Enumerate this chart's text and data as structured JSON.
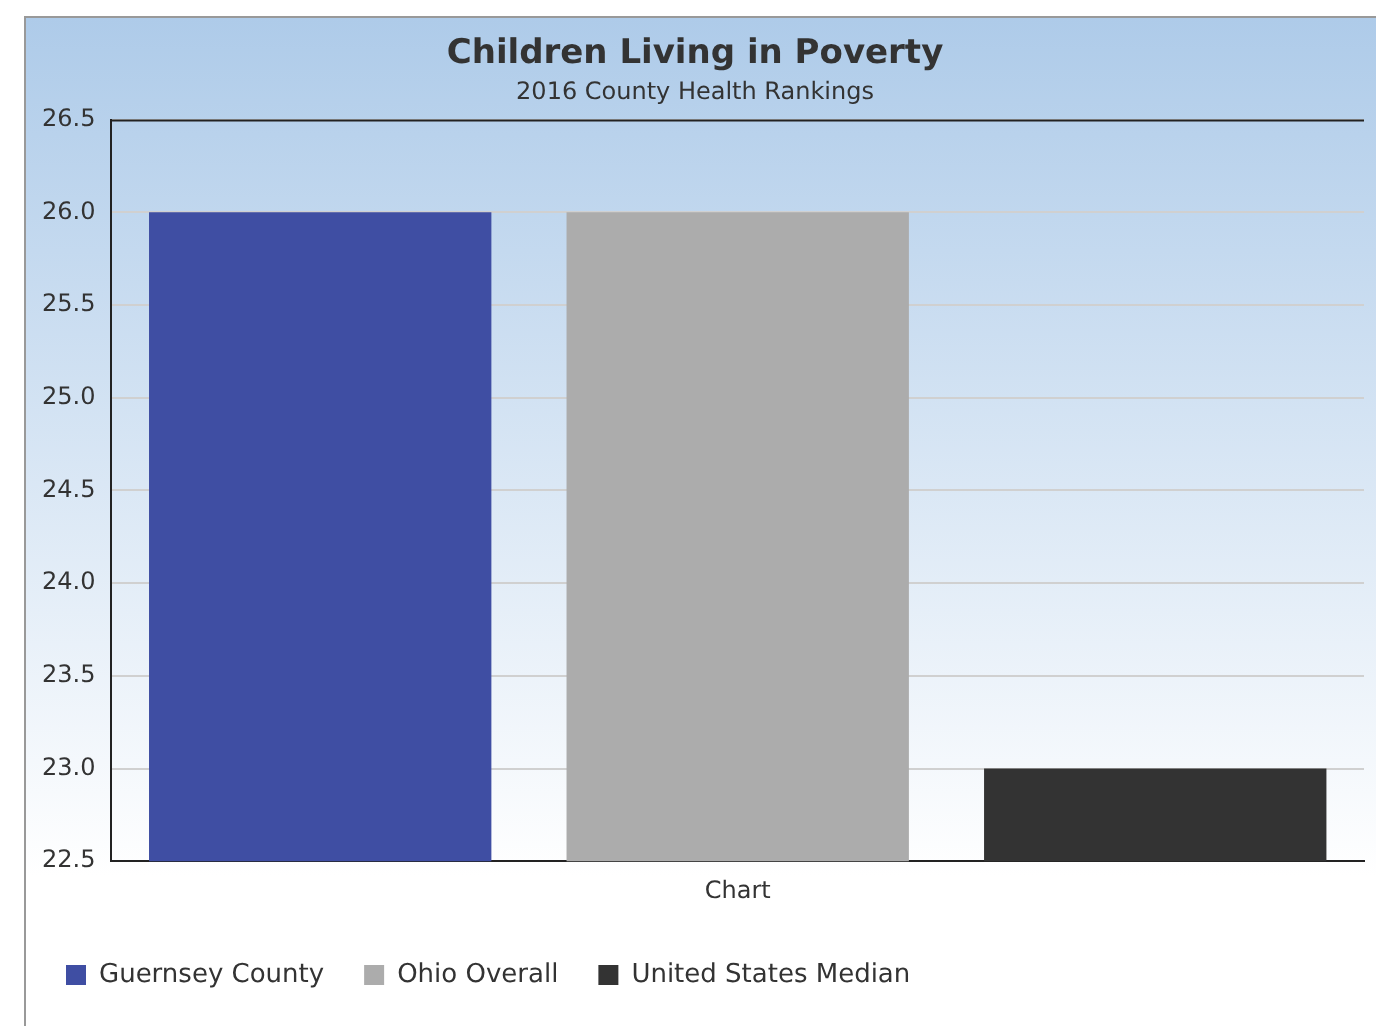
{
  "chart_data": {
    "type": "bar",
    "title": "Children Living in Poverty",
    "subtitle": "2016 County Health Rankings",
    "categories": [
      "Chart"
    ],
    "series": [
      {
        "name": "Guernsey County",
        "color": "#3f4ea3",
        "values": [
          26.0
        ]
      },
      {
        "name": "Ohio Overall",
        "color": "#acacac",
        "values": [
          26.0
        ]
      },
      {
        "name": "United States Median",
        "color": "#333333",
        "values": [
          23.0
        ]
      }
    ],
    "ylim": [
      22.5,
      26.5
    ],
    "yticks": [
      {
        "value": 22.5,
        "label": "22.5"
      },
      {
        "value": 23,
        "label": "23.0"
      },
      {
        "value": 23.5,
        "label": "23.5"
      },
      {
        "value": 24,
        "label": "24.0"
      },
      {
        "value": 24.5,
        "label": "24.5"
      },
      {
        "value": 25,
        "label": "25.0"
      },
      {
        "value": 25.5,
        "label": "25.5"
      },
      {
        "value": 26,
        "label": "26.0"
      },
      {
        "value": 26.5,
        "label": "26.5"
      }
    ],
    "grid": "y",
    "legend": "bottom left"
  }
}
